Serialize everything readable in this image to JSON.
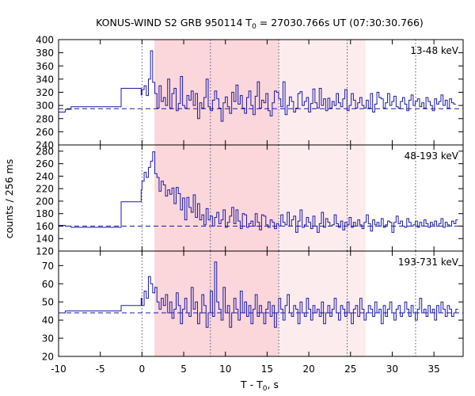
{
  "chart_data": {
    "type": "line",
    "title": {
      "prefix": "KONUS-WIND S2 GRB 950114 T",
      "sub": "0",
      "suffix": " = 27030.766s UT (07:30:30.766)"
    },
    "xlabel": {
      "prefix": "T - T",
      "sub": "0",
      "suffix": ", s"
    },
    "ylabel": "counts / 256 ms",
    "xlim": [
      -10,
      38.5
    ],
    "xticks": [
      -10,
      -5,
      0,
      5,
      10,
      15,
      20,
      25,
      30,
      35
    ],
    "xtick_labels": [
      "-10",
      "-5",
      "0",
      "5",
      "10",
      "15",
      "20",
      "25",
      "30",
      "35"
    ],
    "shaded_intervals": [
      {
        "x0": 1.5,
        "x1": 16.4,
        "color": "#fbd6da"
      },
      {
        "x0": 16.4,
        "x1": 26.8,
        "color": "#fdecee"
      }
    ],
    "vertical_markers": [
      0.0,
      8.2,
      16.4,
      24.6,
      32.8
    ],
    "panels": [
      {
        "label": "13-48 keV",
        "ylim": [
          240,
          400
        ],
        "yticks": [
          240,
          260,
          280,
          300,
          320,
          340,
          360,
          380,
          400
        ],
        "background": 295,
        "series": [
          {
            "pre_x": [
              -10,
              -9.2,
              -8.5,
              -2.5,
              -0.1,
              0.0
            ],
            "pre_y": [
              290,
              294,
              298,
              326,
              316
            ],
            "bin_start": 0.0,
            "bin_width": 0.256,
            "values": [
              324,
              330,
              315,
              340,
              383,
              335,
              318,
              296,
              330,
              306,
              312,
              300,
              340,
              296,
              318,
              326,
              292,
              303,
              344,
              300,
              296,
              315,
              308,
              322,
              300,
              318,
              280,
              304,
              296,
              312,
              340,
              298,
              292,
              308,
              322,
              310,
              296,
              276,
              304,
              313,
              298,
              288,
              320,
              306,
              331,
              302,
              315,
              296,
              288,
              312,
              322,
              300,
              286,
              314,
              336,
              296,
              308,
              304,
              318,
              292,
              284,
              304,
              322,
              320,
              310,
              298,
              336,
              286,
              300,
              313,
              306,
              290,
              296,
              318,
              321,
              300,
              306,
              312,
              290,
              303,
              325,
              304,
              296,
              326,
              300,
              310,
              292,
              311,
              296,
              306,
              300,
              318,
              304,
              298,
              310,
              324,
              292,
              300,
              318,
              308,
              296,
              304,
              312,
              300,
              296,
              308,
              296,
              318,
              290,
              302,
              320,
              312,
              310,
              296,
              304,
              318,
              300,
              306,
              314,
              298,
              296,
              306,
              312,
              302,
              292,
              308,
              316,
              300,
              306,
              310,
              298,
              304,
              296,
              312,
              306,
              300,
              292,
              310,
              302,
              306,
              316,
              300,
              308,
              296,
              310,
              304,
              302
            ]
          }
        ]
      },
      {
        "label": "48-193 keV",
        "ylim": [
          120,
          290
        ],
        "yticks": [
          120,
          140,
          160,
          180,
          200,
          220,
          240,
          260,
          280
        ],
        "background": 160,
        "series": [
          {
            "pre_x": [
              -10,
              -9.2,
              -8.5,
              -2.5,
              -0.1,
              0.0
            ],
            "pre_y": [
              161,
              160,
              158,
              199,
              218
            ],
            "bin_start": 0.0,
            "bin_width": 0.256,
            "values": [
              232,
              246,
              238,
              254,
              264,
              279,
              244,
              238,
              216,
              232,
              226,
              208,
              218,
              211,
              221,
              196,
              222,
              212,
              186,
              205,
              170,
              206,
              190,
              182,
              210,
              174,
              196,
              170,
              178,
              162,
              188,
              170,
              176,
              160,
              174,
              182,
              164,
              170,
              186,
              158,
              166,
              176,
              190,
              164,
              186,
              168,
              156,
              180,
              178,
              158,
              164,
              168,
              160,
              180,
              166,
              154,
              178,
              176,
              162,
              158,
              170,
              166,
              156,
              164,
              160,
              178,
              166,
              162,
              182,
              160,
              170,
              176,
              150,
              168,
              186,
              158,
              162,
              174,
              166,
              156,
              176,
              160,
              150,
              164,
              182,
              158,
              172,
              166,
              160,
              162,
              178,
              164,
              158,
              168,
              154,
              166,
              162,
              174,
              158,
              166,
              160,
              170,
              162,
              156,
              166,
              178,
              164,
              152,
              170,
              162,
              166,
              160,
              172,
              158,
              162,
              168,
              166,
              150,
              166,
              176,
              164,
              168,
              160,
              158,
              172,
              166,
              160,
              162,
              168,
              158,
              166,
              160,
              170,
              164,
              158,
              166,
              162,
              168,
              160,
              164,
              172,
              158,
              166,
              162,
              160,
              168,
              164,
              170
            ]
          }
        ]
      },
      {
        "label": "193-731 keV",
        "ylim": [
          20,
          78
        ],
        "yticks": [
          20,
          30,
          40,
          50,
          60,
          70
        ],
        "background": 44,
        "series": [
          {
            "pre_x": [
              -10,
              -9.2,
              -8.5,
              -2.5,
              -0.1,
              0.0
            ],
            "pre_y": [
              44,
              45,
              45,
              48,
              52
            ],
            "bin_start": 0.0,
            "bin_width": 0.256,
            "values": [
              48,
              56,
              52,
              64,
              60,
              55,
              58,
              50,
              46,
              52,
              48,
              54,
              44,
              50,
              41,
              46,
              55,
              48,
              38,
              46,
              52,
              44,
              42,
              58,
              46,
              50,
              38,
              44,
              54,
              48,
              36,
              44,
              56,
              42,
              72,
              50,
              46,
              40,
              58,
              44,
              48,
              36,
              44,
              52,
              46,
              40,
              56,
              44,
              50,
              42,
              48,
              38,
              46,
              54,
              42,
              48,
              44,
              38,
              46,
              50,
              42,
              48,
              36,
              44,
              52,
              46,
              40,
              48,
              54,
              44,
              42,
              48,
              46,
              38,
              50,
              44,
              42,
              52,
              46,
              40,
              48,
              44,
              46,
              42,
              50,
              38,
              44,
              48,
              42,
              46,
              52,
              44,
              40,
              48,
              46,
              42,
              50,
              44,
              38,
              46,
              48,
              42,
              52,
              46,
              40,
              44,
              48,
              46,
              42,
              50,
              44,
              46,
              38,
              48,
              42,
              46,
              50,
              44,
              40,
              46,
              48,
              42,
              44,
              50,
              46,
              42,
              48,
              44,
              40,
              46,
              52,
              44,
              46,
              42,
              48,
              44,
              46,
              40,
              48,
              44,
              50,
              46,
              42,
              48,
              46,
              42,
              44,
              46
            ]
          }
        ]
      }
    ]
  }
}
